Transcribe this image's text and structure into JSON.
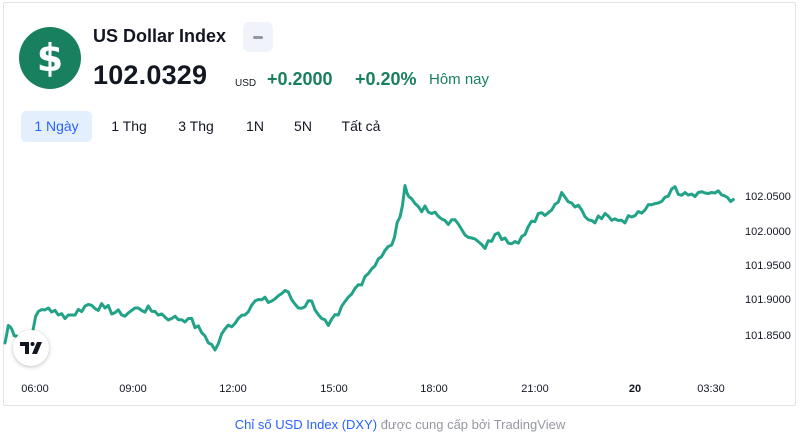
{
  "symbol": {
    "logo_glyph": "$",
    "name": "US Dollar Index",
    "status_icon": "minus-icon",
    "price": "102.0329",
    "currency": "USD",
    "change_abs": "+0.2000",
    "change_pct": "+0.20%",
    "period_label": "Hôm nay"
  },
  "colors": {
    "accent_green": "#19805f",
    "line": "#22a387",
    "tab_active_bg": "#e3effd",
    "tab_active_text": "#2962ff"
  },
  "tabs": [
    {
      "label": "1 Ngày",
      "active": true
    },
    {
      "label": "1 Thg",
      "active": false
    },
    {
      "label": "3 Thg",
      "active": false
    },
    {
      "label": "1N",
      "active": false
    },
    {
      "label": "5N",
      "active": false
    },
    {
      "label": "Tất cả",
      "active": false
    }
  ],
  "chart_data": {
    "type": "line",
    "y_axis_position": "right",
    "y_ticks": [
      "102.0500",
      "102.0000",
      "101.9500",
      "101.9000",
      "101.8500"
    ],
    "x_ticks": [
      "06:00",
      "09:00",
      "12:00",
      "15:00",
      "18:00",
      "21:00",
      "20",
      "03:30"
    ],
    "ylim": [
      101.81,
      102.09
    ],
    "grid": false,
    "series": [
      {
        "values": [
          [
            0,
            101.84
          ],
          [
            0.1,
            101.865
          ],
          [
            0.2,
            101.86
          ],
          [
            0.35,
            101.85
          ],
          [
            0.5,
            101.83
          ],
          [
            0.75,
            101.85
          ],
          [
            1.0,
            101.885
          ],
          [
            1.3,
            101.89
          ],
          [
            1.6,
            101.88
          ],
          [
            2.0,
            101.88
          ],
          [
            2.5,
            101.895
          ],
          [
            3.0,
            101.89
          ],
          [
            3.5,
            101.88
          ],
          [
            4.0,
            101.89
          ],
          [
            4.5,
            101.885
          ],
          [
            5.0,
            101.875
          ],
          [
            5.5,
            101.875
          ],
          [
            6.0,
            101.85
          ],
          [
            6.3,
            101.83
          ],
          [
            6.6,
            101.86
          ],
          [
            7.0,
            101.875
          ],
          [
            7.5,
            101.9
          ],
          [
            8.0,
            101.9
          ],
          [
            8.4,
            101.915
          ],
          [
            8.8,
            101.89
          ],
          [
            9.2,
            101.9
          ],
          [
            9.5,
            101.875
          ],
          [
            9.7,
            101.865
          ],
          [
            10.0,
            101.88
          ],
          [
            10.4,
            101.91
          ],
          [
            10.8,
            101.935
          ],
          [
            11.2,
            101.96
          ],
          [
            11.6,
            101.98
          ],
          [
            11.85,
            102.02
          ],
          [
            12.0,
            102.065
          ],
          [
            12.1,
            102.05
          ],
          [
            12.4,
            102.035
          ],
          [
            12.8,
            102.025
          ],
          [
            13.2,
            102.015
          ],
          [
            13.6,
            102.01
          ],
          [
            14.0,
            101.99
          ],
          [
            14.4,
            101.975
          ],
          [
            14.7,
            101.995
          ],
          [
            15.0,
            101.99
          ],
          [
            15.3,
            101.985
          ],
          [
            15.6,
            101.995
          ],
          [
            16.0,
            102.025
          ],
          [
            16.4,
            102.03
          ],
          [
            16.7,
            102.055
          ],
          [
            17.0,
            102.04
          ],
          [
            17.3,
            102.03
          ],
          [
            17.6,
            102.015
          ],
          [
            18.0,
            102.025
          ],
          [
            18.4,
            102.015
          ],
          [
            18.8,
            102.02
          ],
          [
            19.2,
            102.03
          ],
          [
            19.6,
            102.04
          ],
          [
            20.0,
            102.06
          ],
          [
            20.4,
            102.055
          ],
          [
            20.8,
            102.055
          ],
          [
            21.2,
            102.055
          ],
          [
            21.6,
            102.05
          ],
          [
            21.85,
            102.045
          ]
        ]
      }
    ]
  },
  "footer": {
    "link_text": "Chỉ số USD Index (DXY)",
    "rest_text": " được cung cấp bởi TradingView"
  }
}
